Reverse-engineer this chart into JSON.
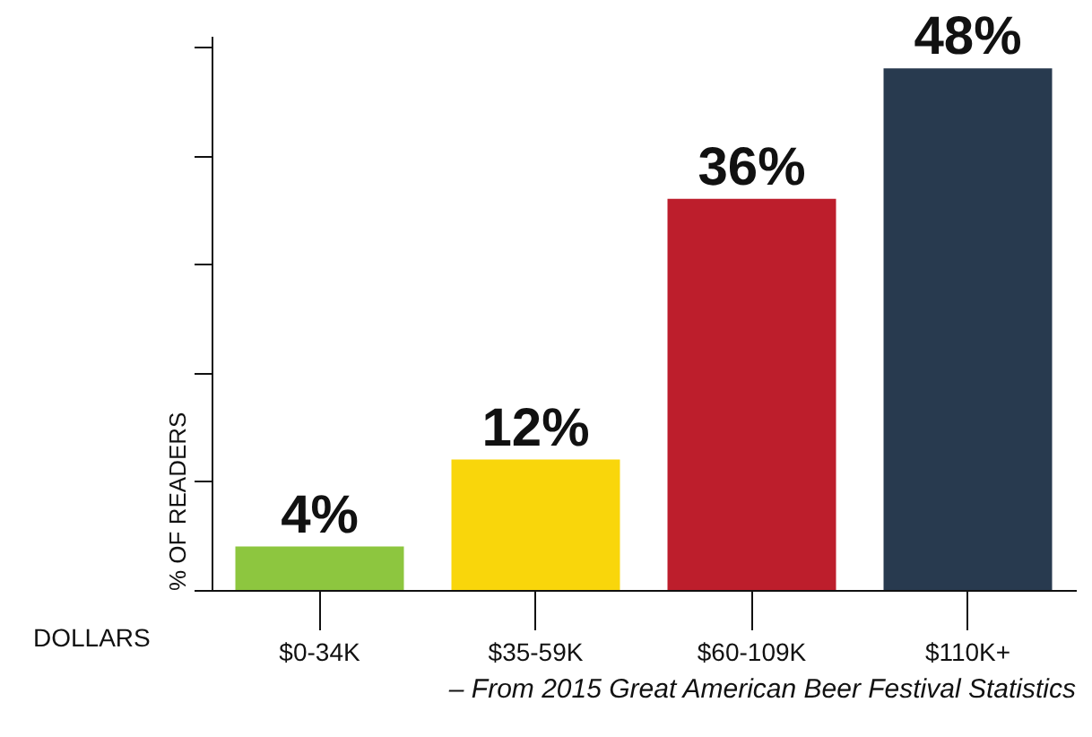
{
  "chart_data": {
    "type": "bar",
    "xlabel": "DOLLARS",
    "ylabel": "% OF READERS",
    "categories": [
      "$0-34K",
      "$35-59K",
      "$60-109K",
      "$110K+"
    ],
    "values": [
      4,
      12,
      36,
      48
    ],
    "colors": [
      "#8dc63f",
      "#f9d60b",
      "#bd1e2c",
      "#283a4f"
    ],
    "value_labels": [
      "4%",
      "12%",
      "36%",
      "48%"
    ],
    "ylim": [
      0,
      51
    ],
    "yticks": [
      {
        "value": 0,
        "label": null
      },
      {
        "value": 10,
        "label": null
      },
      {
        "value": 20,
        "label": null
      },
      {
        "value": 30,
        "label": null
      },
      {
        "value": 40,
        "label": null
      },
      {
        "value": 50,
        "label": null
      }
    ],
    "tick_labels": "x",
    "grid": false,
    "annotations": [
      "– From 2015 Great American Beer Festival Statistics"
    ]
  }
}
